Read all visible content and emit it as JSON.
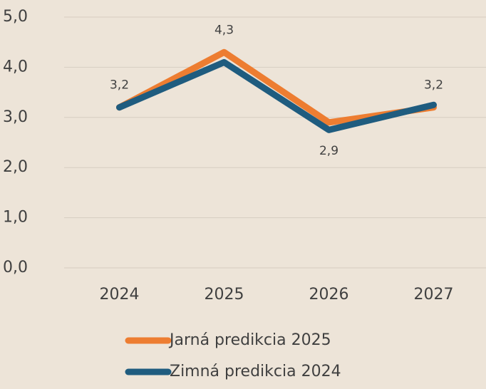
{
  "chart_data": {
    "type": "line",
    "categories": [
      "2024",
      "2025",
      "2026",
      "2027"
    ],
    "series": [
      {
        "name": "Jarná predikcia 2025",
        "color": "#ed7d31",
        "values": [
          3.2,
          4.3,
          2.9,
          3.2
        ],
        "value_labels": [
          "3,2",
          "4,3",
          "2,9",
          "3,2"
        ]
      },
      {
        "name": "Zimná predikcia 2024",
        "color": "#1f5c7f",
        "values": [
          3.2,
          4.1,
          2.75,
          3.25
        ]
      }
    ],
    "ylim": [
      0,
      5
    ],
    "yticks": [
      {
        "value": 0,
        "label": "0,0"
      },
      {
        "value": 1,
        "label": "1,0"
      },
      {
        "value": 2,
        "label": "2,0"
      },
      {
        "value": 3,
        "label": "3,0"
      },
      {
        "value": 4,
        "label": "4,0"
      },
      {
        "value": 5,
        "label": "5,0"
      }
    ],
    "grid": true
  }
}
